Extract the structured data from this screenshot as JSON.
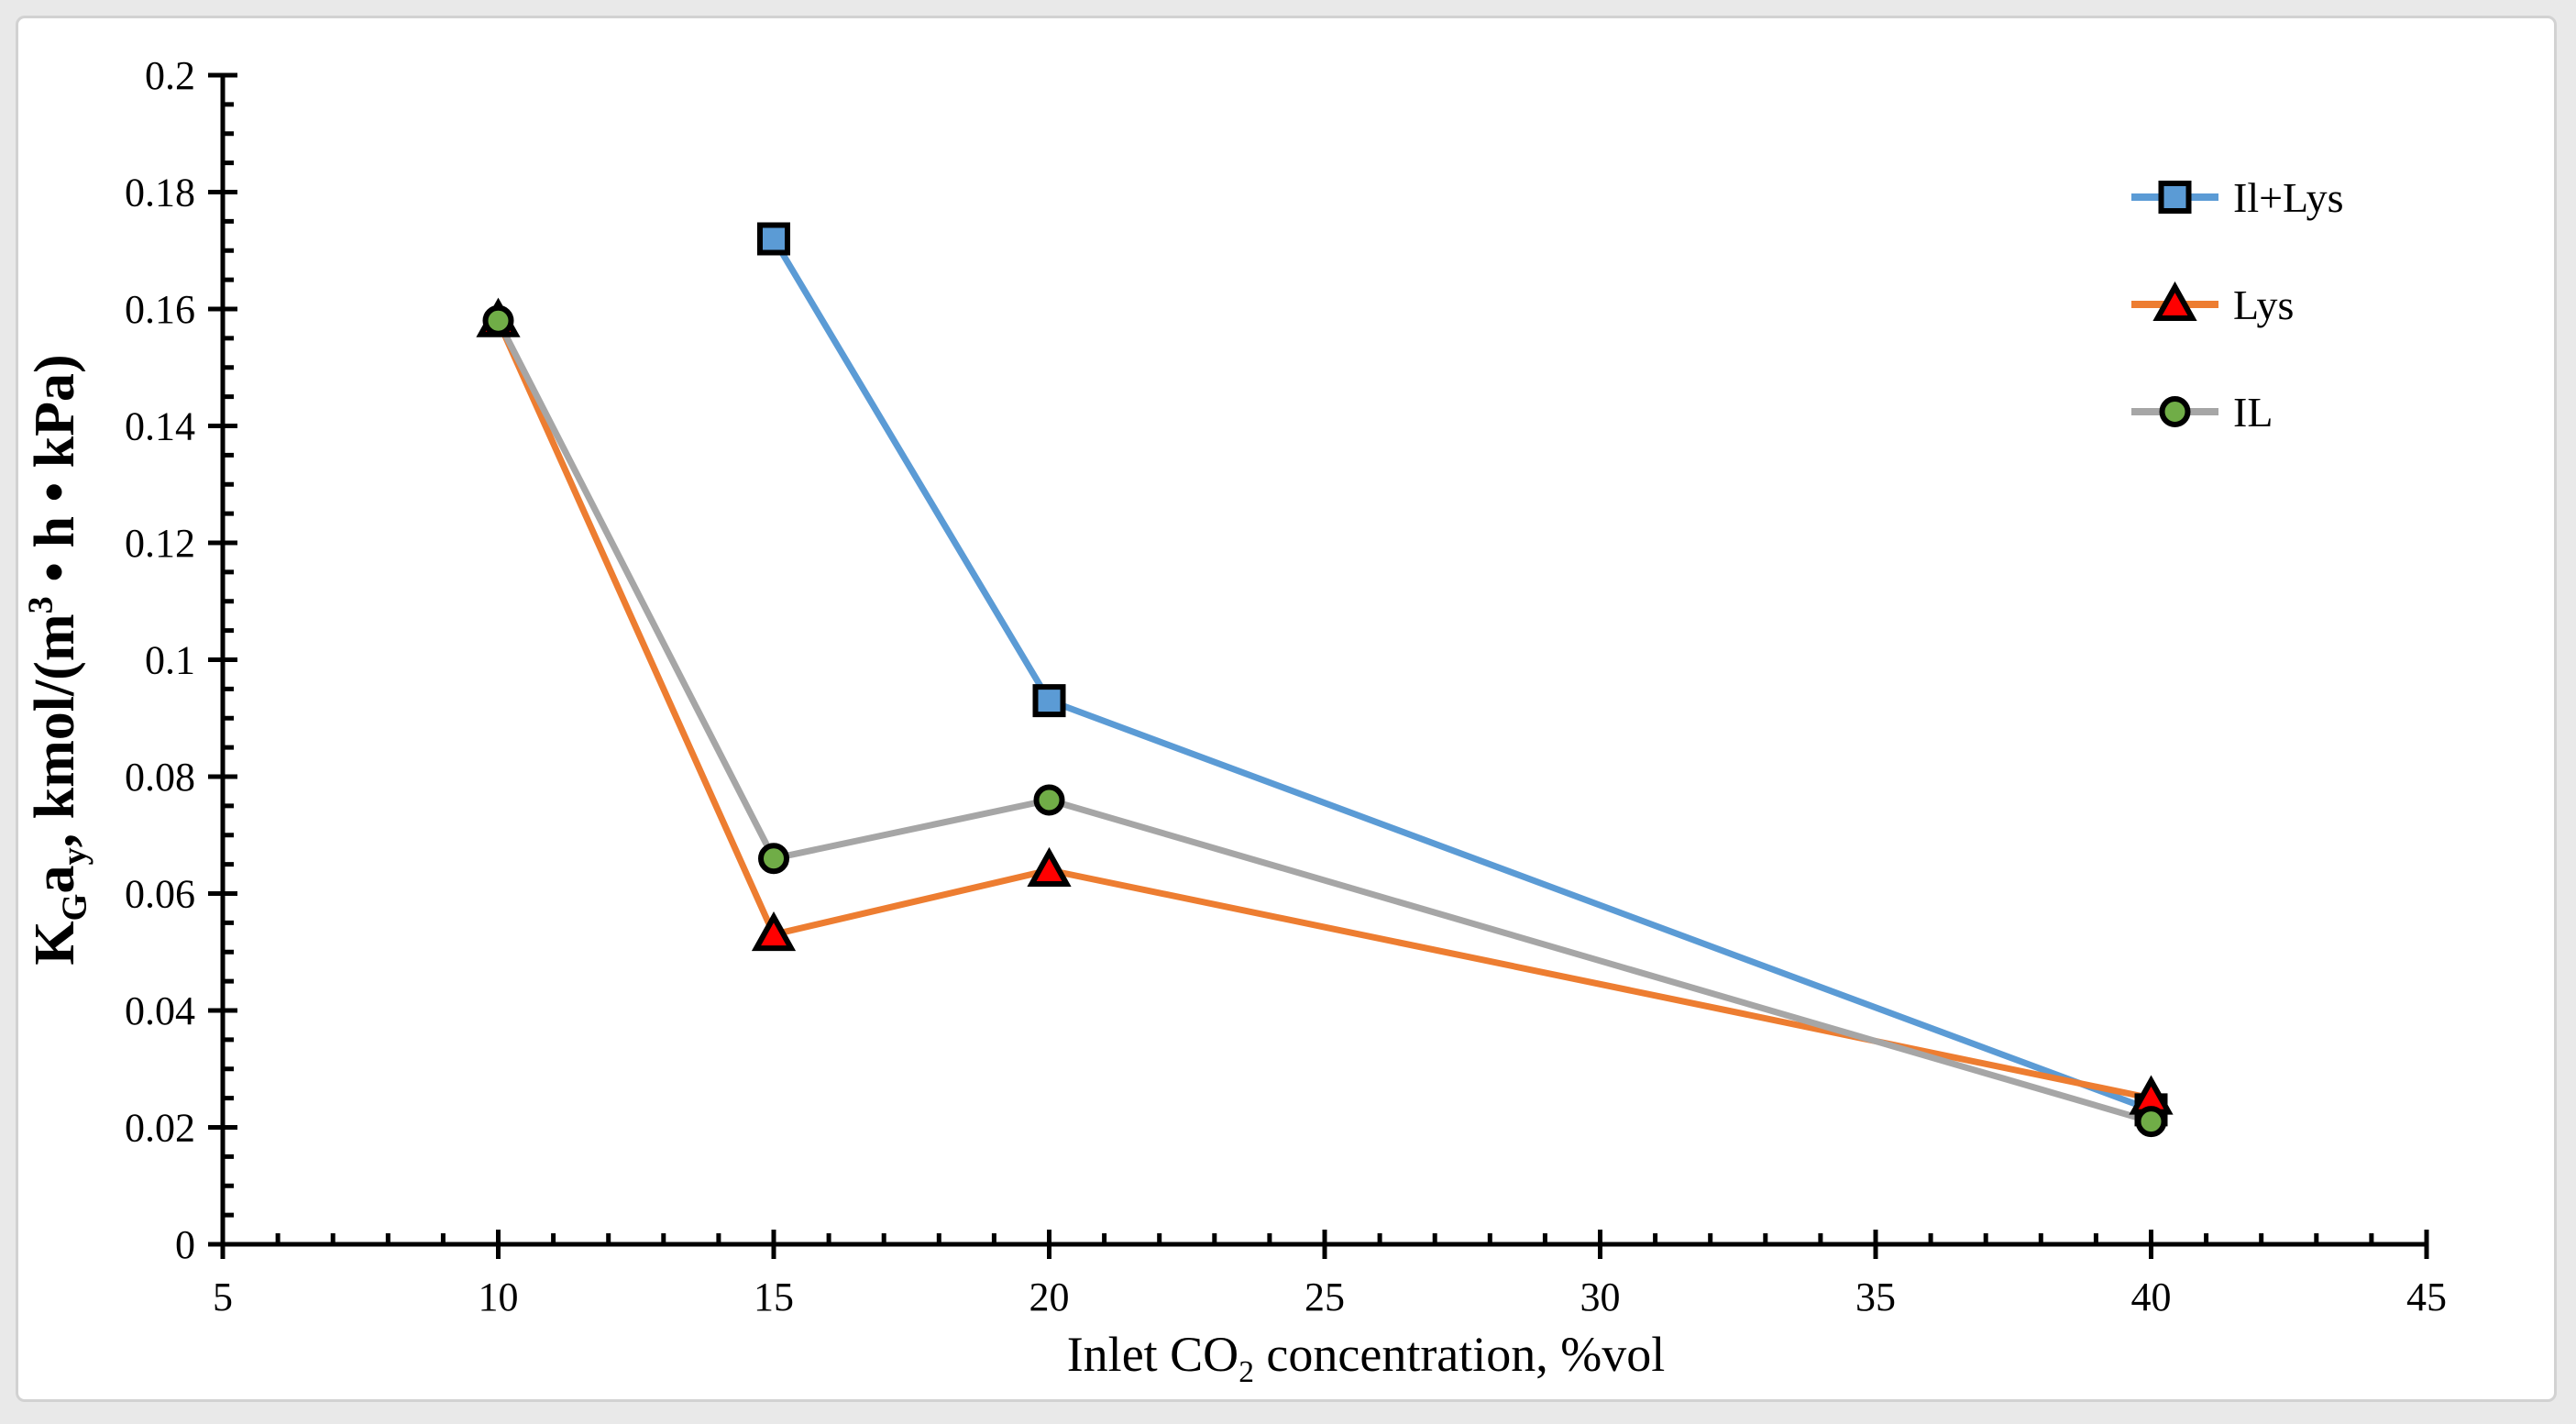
{
  "figure": {
    "outer_background": "#e9e9e9",
    "card_background": "#ffffff",
    "card_border_color": "#d2d2d2",
    "axis_color": "#000000"
  },
  "chart_data": {
    "type": "line",
    "title": "",
    "xlabel": "Inlet CO2 concentration, %vol",
    "ylabel": "KGay, kmol/(m3 • h • kPa)",
    "x_axis": {
      "label_runs": [
        {
          "t": "Inlet CO"
        },
        {
          "t": "2",
          "script": "sub"
        },
        {
          "t": " concentration, %vol"
        }
      ],
      "min": 5,
      "max": 45,
      "major_step": 5,
      "minor_step": 1,
      "tick_labels": [
        "5",
        "10",
        "15",
        "20",
        "25",
        "30",
        "35",
        "40",
        "45"
      ],
      "grid": false
    },
    "y_axis": {
      "label_runs": [
        {
          "t": "K"
        },
        {
          "t": "G",
          "script": "sub"
        },
        {
          "t": "a"
        },
        {
          "t": "y",
          "script": "sub"
        },
        {
          "t": ", kmol/(m"
        },
        {
          "t": "3",
          "script": "sup"
        },
        {
          "t": " • h • kPa)"
        }
      ],
      "min": 0,
      "max": 0.2,
      "major_step": 0.02,
      "minor_step": 0.005,
      "tick_labels": [
        "0",
        "0.02",
        "0.04",
        "0.06",
        "0.08",
        "0.1",
        "0.12",
        "0.14",
        "0.16",
        "0.18",
        "0.2"
      ],
      "grid": false
    },
    "series": [
      {
        "name": "Il+Lys",
        "line_color": "#5B9BD5",
        "marker": "square",
        "marker_fill": "#5B9BD5",
        "marker_outline": "#000000",
        "points": [
          {
            "x": 15,
            "y": 0.172
          },
          {
            "x": 20,
            "y": 0.093
          },
          {
            "x": 40,
            "y": 0.023
          }
        ]
      },
      {
        "name": "Lys",
        "line_color": "#ED7D31",
        "marker": "triangle",
        "marker_fill": "#FF0000",
        "marker_outline": "#000000",
        "points": [
          {
            "x": 10,
            "y": 0.158
          },
          {
            "x": 15,
            "y": 0.053
          },
          {
            "x": 20,
            "y": 0.064
          },
          {
            "x": 40,
            "y": 0.025
          }
        ]
      },
      {
        "name": "IL",
        "line_color": "#A6A6A6",
        "marker": "circle",
        "marker_fill": "#70AD47",
        "marker_outline": "#000000",
        "points": [
          {
            "x": 10,
            "y": 0.158
          },
          {
            "x": 15,
            "y": 0.066
          },
          {
            "x": 20,
            "y": 0.076
          },
          {
            "x": 40,
            "y": 0.021
          }
        ]
      }
    ],
    "legend": {
      "position": "right-top",
      "entries": [
        "Il+Lys",
        "Lys",
        "IL"
      ]
    }
  }
}
